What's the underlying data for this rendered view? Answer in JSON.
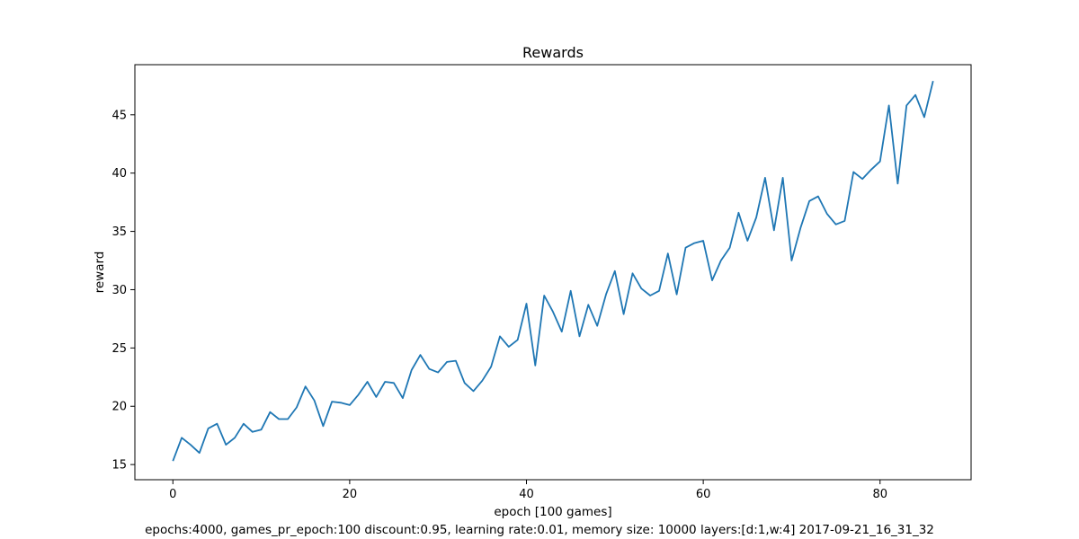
{
  "chart_data": {
    "type": "line",
    "title": "Rewards",
    "xlabel": "epoch [100 games]",
    "ylabel": "reward",
    "caption": "epochs:4000, games_pr_epoch:100 discount:0.95, learning rate:0.01, memory size: 10000 layers:[d:1,w:4] 2017-09-21_16_31_32",
    "xlim": [
      -4.3,
      90.3
    ],
    "ylim": [
      13.7,
      49.3
    ],
    "xticks": [
      0,
      20,
      40,
      60,
      80
    ],
    "yticks": [
      15,
      20,
      25,
      30,
      35,
      40,
      45
    ],
    "grid": false,
    "series": [
      {
        "color": "#1f77b4",
        "x": [
          0,
          1,
          2,
          3,
          4,
          5,
          6,
          7,
          8,
          9,
          10,
          11,
          12,
          13,
          14,
          15,
          16,
          17,
          18,
          19,
          20,
          21,
          22,
          23,
          24,
          25,
          26,
          27,
          28,
          29,
          30,
          31,
          32,
          33,
          34,
          35,
          36,
          37,
          38,
          39,
          40,
          41,
          42,
          43,
          44,
          45,
          46,
          47,
          48,
          49,
          50,
          51,
          52,
          53,
          54,
          55,
          56,
          57,
          58,
          59,
          60,
          61,
          62,
          63,
          64,
          65,
          66,
          67,
          68,
          69,
          70,
          71,
          72,
          73,
          74,
          75,
          76,
          77,
          78,
          79,
          80,
          81,
          82,
          83,
          84,
          85,
          86
        ],
        "values": [
          15.3,
          17.3,
          16.7,
          16.0,
          18.1,
          18.5,
          16.7,
          17.3,
          18.5,
          17.8,
          18.0,
          19.5,
          18.9,
          18.9,
          19.9,
          21.7,
          20.5,
          18.3,
          20.4,
          20.3,
          20.1,
          21.0,
          22.1,
          20.8,
          22.1,
          22.0,
          20.7,
          23.1,
          24.4,
          23.2,
          22.9,
          23.8,
          23.9,
          22.0,
          21.3,
          22.2,
          23.4,
          26.0,
          25.1,
          25.7,
          28.8,
          23.5,
          29.5,
          28.1,
          26.4,
          29.9,
          26.0,
          28.7,
          26.9,
          29.6,
          31.6,
          27.9,
          31.4,
          30.1,
          29.5,
          29.9,
          33.1,
          29.6,
          33.6,
          34.0,
          34.2,
          30.8,
          32.5,
          33.6,
          36.6,
          34.2,
          36.2,
          39.6,
          35.1,
          39.6,
          32.5,
          35.3,
          37.6,
          38.0,
          36.5,
          35.6,
          35.9,
          40.1,
          39.5,
          40.3,
          41.0,
          45.8,
          39.1,
          45.8,
          46.7,
          44.8,
          47.9
        ]
      }
    ]
  }
}
